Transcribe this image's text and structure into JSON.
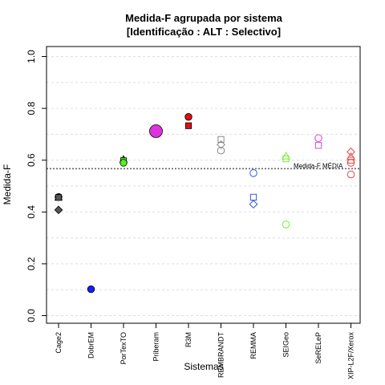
{
  "chart_data": {
    "type": "scatter",
    "title_line1": "Medida-F agrupada por sistema",
    "title_line2": "[Identificação : ALT : Selectivo]",
    "xlabel": "Sistemas",
    "ylabel": "Medida-F",
    "ylim": [
      0.0,
      1.0
    ],
    "yticks": [
      "0.0",
      "0.2",
      "0.4",
      "0.6",
      "0.8",
      "1.0"
    ],
    "ytick_values": [
      0.0,
      0.2,
      0.4,
      0.6,
      0.8,
      1.0
    ],
    "grid": true,
    "categories": [
      "Cage2",
      "DobrEM",
      "PorTexTO",
      "Priberam",
      "R3M",
      "REMBRANDT",
      "REMMA",
      "SEIGeo",
      "SeRELeP",
      "XIP-L2F/Xerox"
    ],
    "reference_line": {
      "label": "Medida-F MÉDIA",
      "value": 0.567
    },
    "points": [
      {
        "cat": 0,
        "y": 0.458,
        "shape": "circle",
        "filled": true,
        "color": "#555555",
        "size": 1
      },
      {
        "cat": 0,
        "y": 0.456,
        "shape": "triangle",
        "filled": true,
        "color": "#555555",
        "size": 1
      },
      {
        "cat": 0,
        "y": 0.456,
        "shape": "square",
        "filled": true,
        "color": "#555555",
        "size": 1
      },
      {
        "cat": 0,
        "y": 0.408,
        "shape": "diamond",
        "filled": true,
        "color": "#555555",
        "size": 1
      },
      {
        "cat": 1,
        "y": 0.102,
        "shape": "circle",
        "filled": true,
        "color": "#1a1aff",
        "size": 1
      },
      {
        "cat": 2,
        "y": 0.603,
        "shape": "triangle",
        "filled": true,
        "color": "#55ee22",
        "size": 1
      },
      {
        "cat": 2,
        "y": 0.598,
        "shape": "square",
        "filled": true,
        "color": "#55ee22",
        "size": 1
      },
      {
        "cat": 2,
        "y": 0.59,
        "shape": "circle",
        "filled": true,
        "color": "#55ee22",
        "size": 1
      },
      {
        "cat": 3,
        "y": 0.712,
        "shape": "circle",
        "filled": true,
        "color": "#dd33dd",
        "size": 2
      },
      {
        "cat": 4,
        "y": 0.767,
        "shape": "circle",
        "filled": true,
        "color": "#dd1111",
        "size": 1
      },
      {
        "cat": 4,
        "y": 0.733,
        "shape": "square",
        "filled": true,
        "color": "#dd1111",
        "size": 1
      },
      {
        "cat": 5,
        "y": 0.68,
        "shape": "square",
        "filled": false,
        "color": "#888888",
        "size": 1
      },
      {
        "cat": 5,
        "y": 0.66,
        "shape": "diamond",
        "filled": false,
        "color": "#888888",
        "size": 1
      },
      {
        "cat": 5,
        "y": 0.637,
        "shape": "circle",
        "filled": false,
        "color": "#888888",
        "size": 1
      },
      {
        "cat": 6,
        "y": 0.55,
        "shape": "circle",
        "filled": false,
        "color": "#3355dd",
        "size": 1
      },
      {
        "cat": 6,
        "y": 0.457,
        "shape": "square",
        "filled": false,
        "color": "#3355dd",
        "size": 1
      },
      {
        "cat": 6,
        "y": 0.43,
        "shape": "diamond",
        "filled": false,
        "color": "#3355dd",
        "size": 1
      },
      {
        "cat": 7,
        "y": 0.615,
        "shape": "triangle",
        "filled": false,
        "color": "#77ee33",
        "size": 1
      },
      {
        "cat": 7,
        "y": 0.605,
        "shape": "square",
        "filled": false,
        "color": "#77ee33",
        "size": 1
      },
      {
        "cat": 7,
        "y": 0.352,
        "shape": "circle",
        "filled": false,
        "color": "#77ee33",
        "size": 1
      },
      {
        "cat": 8,
        "y": 0.685,
        "shape": "circle",
        "filled": false,
        "color": "#dd44dd",
        "size": 1
      },
      {
        "cat": 8,
        "y": 0.657,
        "shape": "square",
        "filled": false,
        "color": "#dd44dd",
        "size": 1
      },
      {
        "cat": 9,
        "y": 0.632,
        "shape": "diamond",
        "filled": false,
        "color": "#ee4444",
        "size": 1
      },
      {
        "cat": 9,
        "y": 0.613,
        "shape": "triangle",
        "filled": false,
        "color": "#ee4444",
        "size": 1
      },
      {
        "cat": 9,
        "y": 0.6,
        "shape": "square",
        "filled": false,
        "color": "#ee4444",
        "size": 1
      },
      {
        "cat": 9,
        "y": 0.59,
        "shape": "circle",
        "filled": false,
        "color": "#ee4444",
        "size": 1
      },
      {
        "cat": 9,
        "y": 0.545,
        "shape": "circle",
        "filled": false,
        "color": "#ee4444",
        "size": 1
      }
    ]
  }
}
